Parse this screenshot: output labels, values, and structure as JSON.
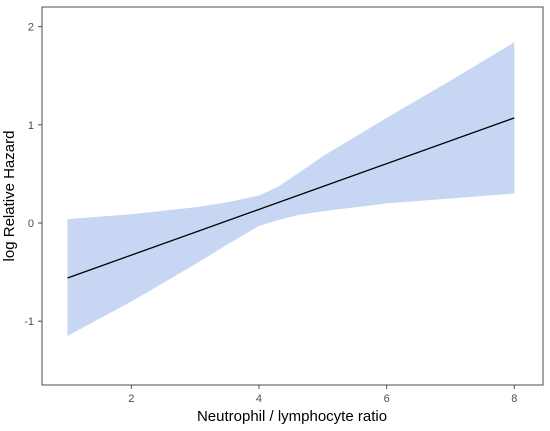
{
  "chart_data": {
    "type": "line",
    "title": "",
    "xlabel": "Neutrophil / lymphocyte ratio",
    "ylabel": "log Relative Hazard",
    "xlim": [
      0.6,
      8.45
    ],
    "ylim": [
      -1.65,
      2.2
    ],
    "x_ticks": [
      2,
      4,
      6,
      8
    ],
    "y_ticks": [
      -1,
      0,
      1,
      2
    ],
    "grid": false,
    "legend": "none",
    "series": [
      {
        "x": [
          1,
          8
        ],
        "y": [
          -0.56,
          1.07
        ]
      }
    ],
    "confidence_band": {
      "x": [
        1,
        2,
        3,
        3.5,
        4,
        4.3,
        4.6,
        5,
        6,
        7,
        8
      ],
      "lower": [
        -1.15,
        -0.8,
        -0.42,
        -0.22,
        -0.03,
        0.03,
        0.08,
        0.12,
        0.2,
        0.25,
        0.3
      ],
      "upper": [
        0.04,
        0.09,
        0.16,
        0.21,
        0.28,
        0.37,
        0.5,
        0.68,
        1.07,
        1.45,
        1.84
      ]
    },
    "colors": {
      "line": "#000000",
      "band": "#c6d6f3",
      "axis": "#4d4d4d"
    }
  }
}
